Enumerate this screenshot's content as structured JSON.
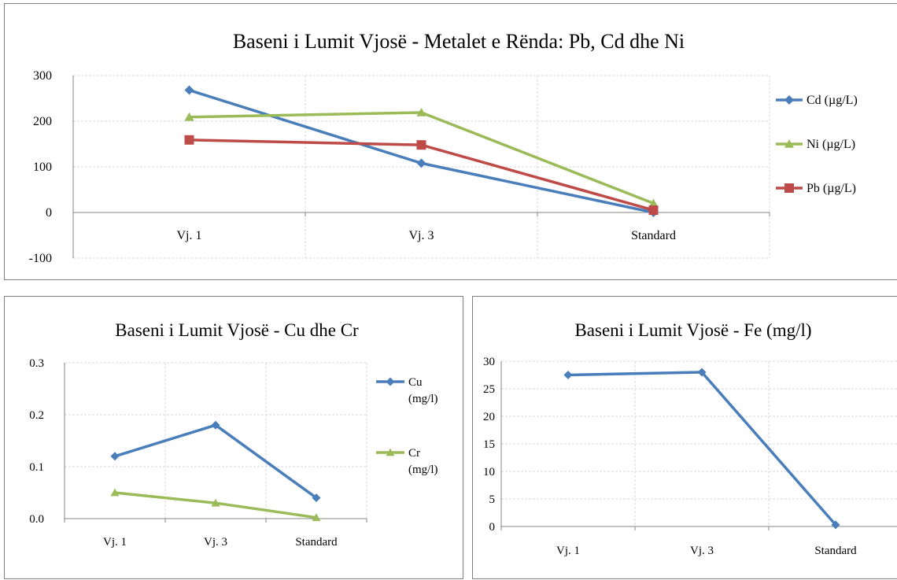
{
  "chart_data": [
    {
      "type": "line",
      "title": "Baseni i Lumit Vjosë - Metalet e Rënda: Pb, Cd dhe Ni",
      "categories": [
        "Vj. 1",
        "Vj. 3",
        "Standard"
      ],
      "ylim": [
        -100,
        300
      ],
      "yticks": [
        "300",
        "200",
        "100",
        "0",
        "-100"
      ],
      "grid": true,
      "legend_position": "right",
      "series": [
        {
          "name": "Cd (µg/L)",
          "values": [
            268,
            108,
            0
          ],
          "color": "#4a7ebb",
          "marker": "diamond"
        },
        {
          "name": "Ni (µg/L)",
          "values": [
            209,
            219,
            20
          ],
          "color": "#9bbb59",
          "marker": "triangle"
        },
        {
          "name": "Pb (µg/L)",
          "values": [
            159,
            148,
            5
          ],
          "color": "#be4b48",
          "marker": "square"
        }
      ]
    },
    {
      "type": "line",
      "title": "Baseni i Lumit Vjosë - Cu dhe Cr",
      "categories": [
        "Vj. 1",
        "Vj. 3",
        "Standard"
      ],
      "ylim": [
        0,
        0.3
      ],
      "yticks": [
        "0.0",
        "0.1",
        "0.2",
        "0.3"
      ],
      "grid": true,
      "legend_position": "right",
      "series": [
        {
          "name": "Cu (mg/l)",
          "label_lines": [
            "Cu",
            "(mg/l)"
          ],
          "values": [
            0.12,
            0.18,
            0.04
          ],
          "color": "#4a7ebb",
          "marker": "diamond"
        },
        {
          "name": "Cr (mg/l)",
          "label_lines": [
            "Cr",
            "(mg/l)"
          ],
          "values": [
            0.05,
            0.03,
            0.002
          ],
          "color": "#9bbb59",
          "marker": "triangle"
        }
      ]
    },
    {
      "type": "line",
      "title": "Baseni i Lumit Vjosë - Fe (mg/l)",
      "categories": [
        "Vj. 1",
        "Vj. 3",
        "Standard"
      ],
      "ylim": [
        0,
        30
      ],
      "yticks": [
        "0",
        "5",
        "10",
        "15",
        "20",
        "25",
        "30"
      ],
      "grid": true,
      "legend_position": "none",
      "series": [
        {
          "values": [
            27.5,
            28,
            0.3
          ],
          "color": "#4a7ebb",
          "marker": "diamond"
        }
      ]
    }
  ]
}
